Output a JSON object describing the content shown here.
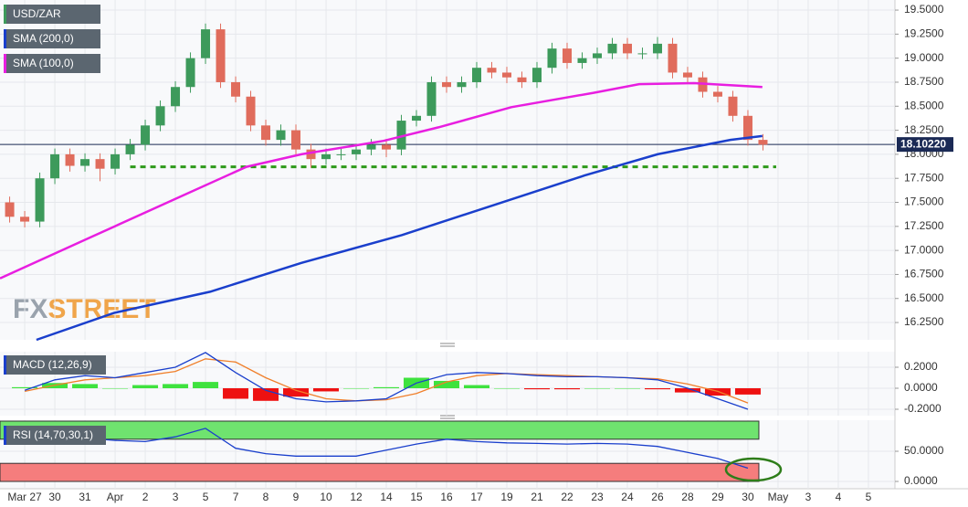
{
  "chart_data": [
    {
      "type": "candlestick",
      "candles": {
        "name": "USD/ZAR",
        "up_color": "#3d9a5b",
        "down_color": "#e06c5c",
        "x": [
          -0.5,
          0,
          0.5,
          1,
          1.5,
          2,
          2.5,
          3,
          3.5,
          4,
          4.5,
          5,
          5.5,
          6,
          6.5,
          7,
          7.5,
          8,
          8.5,
          9,
          9.5,
          10,
          10.5,
          11,
          11.5,
          12,
          12.5,
          13,
          13.5,
          14,
          14.5,
          15,
          15.5,
          16,
          16.5,
          17,
          17.5,
          18,
          18.5,
          19,
          19.5,
          20,
          20.5,
          21,
          21.5,
          22,
          22.5,
          23,
          23.5,
          24,
          24.5
        ],
        "open": [
          17.5,
          17.35,
          17.3,
          17.75,
          18.0,
          17.88,
          17.95,
          17.85,
          18.0,
          18.1,
          18.3,
          18.5,
          18.7,
          19.0,
          19.3,
          18.75,
          18.6,
          18.3,
          18.15,
          18.25,
          18.05,
          17.95,
          18.0,
          18.0,
          18.05,
          18.1,
          18.05,
          18.35,
          18.4,
          18.75,
          18.7,
          18.75,
          18.9,
          18.85,
          18.8,
          18.75,
          18.9,
          19.1,
          18.95,
          19.0,
          19.05,
          19.15,
          19.05,
          19.05,
          19.15,
          18.85,
          18.8,
          18.65,
          18.6,
          18.4,
          18.15
        ],
        "high": [
          17.56,
          17.41,
          17.81,
          18.06,
          18.06,
          18.01,
          18.01,
          18.06,
          18.16,
          18.36,
          18.56,
          18.76,
          19.06,
          19.36,
          19.36,
          18.81,
          18.66,
          18.36,
          18.31,
          18.31,
          18.11,
          18.06,
          18.06,
          18.11,
          18.16,
          18.16,
          18.41,
          18.46,
          18.81,
          18.81,
          18.81,
          18.96,
          18.96,
          18.91,
          18.86,
          18.96,
          19.16,
          19.16,
          19.06,
          19.11,
          19.21,
          19.21,
          19.11,
          19.22,
          19.21,
          18.91,
          18.86,
          18.71,
          18.66,
          18.46,
          18.21
        ],
        "low": [
          17.29,
          17.24,
          17.24,
          17.69,
          17.82,
          17.82,
          17.72,
          17.79,
          17.94,
          18.04,
          18.24,
          18.44,
          18.64,
          18.94,
          18.69,
          18.54,
          18.24,
          18.09,
          18.09,
          17.99,
          17.86,
          17.89,
          17.94,
          17.94,
          17.99,
          17.97,
          17.99,
          18.29,
          18.34,
          18.64,
          18.64,
          18.69,
          18.79,
          18.74,
          18.69,
          18.69,
          18.84,
          18.89,
          18.89,
          18.94,
          18.99,
          18.99,
          18.99,
          18.99,
          18.79,
          18.74,
          18.59,
          18.54,
          18.34,
          18.09,
          18.04
        ],
        "close": [
          17.35,
          17.3,
          17.75,
          18.0,
          17.88,
          17.95,
          17.85,
          18.0,
          18.1,
          18.3,
          18.5,
          18.7,
          19.0,
          19.3,
          18.75,
          18.6,
          18.3,
          18.15,
          18.25,
          18.05,
          17.95,
          18.0,
          18.0,
          18.05,
          18.1,
          18.05,
          18.35,
          18.4,
          18.75,
          18.7,
          18.75,
          18.9,
          18.85,
          18.8,
          18.75,
          18.9,
          19.1,
          18.95,
          19.0,
          19.05,
          19.15,
          19.05,
          19.05,
          19.15,
          18.85,
          18.8,
          18.65,
          18.6,
          18.4,
          18.15,
          18.1
        ]
      },
      "series": [
        {
          "name": "SMA (200,0)",
          "color": "#1a3fcc",
          "x": [
            0.39,
            2.97,
            6.15,
            9.18,
            12.52,
            15.55,
            18.58,
            21.0,
            23.42,
            24.48
          ],
          "values": [
            16.07,
            16.35,
            16.57,
            16.87,
            17.16,
            17.47,
            17.78,
            18.0,
            18.15,
            18.19
          ]
        },
        {
          "name": "SMA (100,0)",
          "color": "#e81ee0",
          "x": [
            -0.82,
            2.21,
            5.24,
            7.36,
            9.18,
            11.91,
            13.73,
            16.15,
            18.88,
            20.39,
            22.21,
            24.48
          ],
          "values": [
            16.71,
            17.14,
            17.57,
            17.87,
            18.0,
            18.14,
            18.28,
            18.49,
            18.64,
            18.73,
            18.74,
            18.7
          ]
        }
      ],
      "last_price": {
        "value": 18.1022,
        "label": "18.10220"
      },
      "support": 17.87,
      "watermark": [
        "FX",
        "STREET"
      ],
      "xlim": [
        -0.82,
        28.88
      ],
      "xticks": [
        {
          "value": 0,
          "label": "Mar 27"
        },
        {
          "value": 1,
          "label": "30"
        },
        {
          "value": 2,
          "label": "31"
        },
        {
          "value": 3,
          "label": "Apr"
        },
        {
          "value": 4,
          "label": "2"
        },
        {
          "value": 5,
          "label": "3"
        },
        {
          "value": 6,
          "label": "5"
        },
        {
          "value": 7,
          "label": "7"
        },
        {
          "value": 8,
          "label": "8"
        },
        {
          "value": 9,
          "label": "9"
        },
        {
          "value": 10,
          "label": "10"
        },
        {
          "value": 11,
          "label": "12"
        },
        {
          "value": 12,
          "label": "14"
        },
        {
          "value": 13,
          "label": "15"
        },
        {
          "value": 14,
          "label": "16"
        },
        {
          "value": 15,
          "label": "17"
        },
        {
          "value": 16,
          "label": "19"
        },
        {
          "value": 17,
          "label": "21"
        },
        {
          "value": 18,
          "label": "22"
        },
        {
          "value": 19,
          "label": "23"
        },
        {
          "value": 20,
          "label": "24"
        },
        {
          "value": 21,
          "label": "26"
        },
        {
          "value": 22,
          "label": "28"
        },
        {
          "value": 23,
          "label": "29"
        },
        {
          "value": 24,
          "label": "30"
        },
        {
          "value": 25,
          "label": "May"
        },
        {
          "value": 26,
          "label": "3"
        },
        {
          "value": 27,
          "label": "4"
        },
        {
          "value": 28,
          "label": "5"
        }
      ],
      "ylim": [
        16.07,
        19.605
      ],
      "yticks": [
        {
          "value": 19.5,
          "label": "19.5000"
        },
        {
          "value": 19.25,
          "label": "19.2500"
        },
        {
          "value": 19.0,
          "label": "19.0000"
        },
        {
          "value": 18.75,
          "label": "18.7500"
        },
        {
          "value": 18.5,
          "label": "18.5000"
        },
        {
          "value": 18.25,
          "label": "18.2500"
        },
        {
          "value": 18.0,
          "label": "18.0000"
        },
        {
          "value": 17.75,
          "label": "17.7500"
        },
        {
          "value": 17.5,
          "label": "17.5000"
        },
        {
          "value": 17.25,
          "label": "17.2500"
        },
        {
          "value": 17.0,
          "label": "17.0000"
        },
        {
          "value": 16.75,
          "label": "16.7500"
        },
        {
          "value": 16.5,
          "label": "16.5000"
        },
        {
          "value": 16.25,
          "label": "16.2500"
        }
      ],
      "grid": true
    },
    {
      "type": "macd",
      "title": "MACD (12,26,9)",
      "x": [
        0,
        1,
        2,
        3,
        4,
        5,
        6,
        7,
        8,
        9,
        10,
        11,
        12,
        13,
        14,
        15,
        16,
        17,
        18,
        19,
        20,
        21,
        22,
        23,
        24
      ],
      "macd": {
        "color": "#1a3fcc",
        "values": [
          -0.02,
          0.08,
          0.12,
          0.1,
          0.15,
          0.2,
          0.34,
          0.15,
          -0.02,
          -0.1,
          -0.13,
          -0.12,
          -0.1,
          0.05,
          0.13,
          0.15,
          0.14,
          0.12,
          0.11,
          0.11,
          0.1,
          0.08,
          0,
          -0.1,
          -0.2
        ]
      },
      "signal": {
        "color": "#f07f2a",
        "values": [
          -0.03,
          0.03,
          0.08,
          0.1,
          0.12,
          0.16,
          0.28,
          0.25,
          0.1,
          -0.02,
          -0.1,
          -0.12,
          -0.11,
          -0.05,
          0.06,
          0.12,
          0.14,
          0.13,
          0.12,
          0.11,
          0.1,
          0.09,
          0.04,
          -0.03,
          -0.14
        ]
      },
      "histogram": {
        "up_color": "#3ee23e",
        "down_color": "#ee1111",
        "values": [
          0.01,
          0.05,
          0.04,
          0,
          0.03,
          0.04,
          0.06,
          -0.1,
          -0.12,
          -0.08,
          -0.03,
          0,
          0.01,
          0.1,
          0.07,
          0.03,
          0,
          -0.01,
          -0.01,
          0,
          0,
          -0.01,
          -0.04,
          -0.07,
          -0.06
        ]
      },
      "ylim": [
        -0.261,
        0.348
      ],
      "yticks": [
        {
          "value": 0.2,
          "label": "0.2000"
        },
        {
          "value": 0,
          "label": "0.0000"
        },
        {
          "value": -0.2,
          "label": "-0.2000"
        }
      ]
    },
    {
      "type": "rsi",
      "title": "RSI (14,70,30,1)",
      "x": [
        0,
        1,
        2,
        3,
        4,
        5,
        6,
        7,
        8,
        9,
        10,
        11,
        12,
        13,
        14,
        15,
        16,
        17,
        18,
        19,
        20,
        21,
        22,
        23,
        24
      ],
      "values": [
        65,
        70,
        72,
        68,
        66,
        74,
        88,
        55,
        46,
        42,
        42,
        42,
        52,
        62,
        70,
        66,
        64,
        63,
        62,
        63,
        62,
        58,
        48,
        38,
        22
      ],
      "color": "#1a3fcc",
      "overbought": 70,
      "oversold": 30,
      "max": 100,
      "min": 0,
      "ylim": [
        -12.1,
        101.5
      ],
      "yticks": [
        {
          "value": 50,
          "label": "50.0000"
        },
        {
          "value": 0,
          "label": "0.0000"
        }
      ]
    }
  ]
}
